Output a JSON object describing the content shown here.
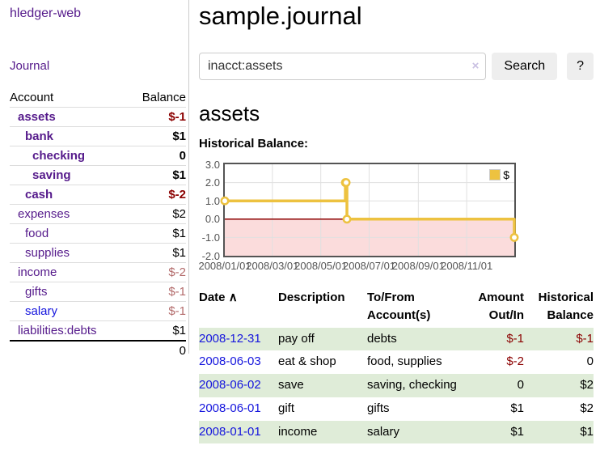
{
  "colors": {
    "link_purple": "#551a8b",
    "link_blue": "#1515dd",
    "negative_dark": "#8b0000",
    "negative_muted": "#b36b6b",
    "stripe_green": "#dfecd8",
    "button_bg": "#eeeeee",
    "input_border": "#cccccc",
    "clear_icon": "#c9c0e2",
    "divider": "#cccccc",
    "row_border": "#dddddd",
    "chart_line": "#edc240"
  },
  "sidebar": {
    "app_title": "hledger-web",
    "journal_link": "Journal",
    "accounts": {
      "account_header": "Account",
      "balance_header": "Balance",
      "rows": [
        {
          "account": "assets",
          "balance": "$-1",
          "indent": 0,
          "bold": true,
          "negative": true,
          "visited": true
        },
        {
          "account": "bank",
          "balance": "$1",
          "indent": 1,
          "bold": true,
          "negative": false,
          "visited": true
        },
        {
          "account": "checking",
          "balance": "0",
          "indent": 2,
          "bold": true,
          "negative": false,
          "visited": true
        },
        {
          "account": "saving",
          "balance": "$1",
          "indent": 2,
          "bold": true,
          "negative": false,
          "visited": true
        },
        {
          "account": "cash",
          "balance": "$-2",
          "indent": 1,
          "bold": true,
          "negative": true,
          "visited": true
        },
        {
          "account": "expenses",
          "balance": "$2",
          "indent": 0,
          "bold": false,
          "negative": false,
          "visited": true
        },
        {
          "account": "food",
          "balance": "$1",
          "indent": 1,
          "bold": false,
          "negative": false,
          "visited": true
        },
        {
          "account": "supplies",
          "balance": "$1",
          "indent": 1,
          "bold": false,
          "negative": false,
          "visited": true
        },
        {
          "account": "income",
          "balance": "$-2",
          "indent": 0,
          "bold": false,
          "negative": true,
          "visited": true
        },
        {
          "account": "gifts",
          "balance": "$-1",
          "indent": 1,
          "bold": false,
          "negative": true,
          "visited": true
        },
        {
          "account": "salary",
          "balance": "$-1",
          "indent": 1,
          "bold": false,
          "negative": true,
          "visited": false
        },
        {
          "account": "liabilities:debts",
          "balance": "$1",
          "indent": 0,
          "bold": false,
          "negative": false,
          "visited": true
        }
      ],
      "total": "0"
    }
  },
  "main": {
    "title": "sample.journal",
    "search": {
      "value": "inacct:assets",
      "clear_icon": "×",
      "search_button": "Search",
      "help_button": "?"
    },
    "account_heading": "assets",
    "section_label": "Historical Balance:"
  },
  "chart_data": {
    "type": "line",
    "step": true,
    "title": "Historical Balance:",
    "series": [
      {
        "name": "$",
        "color": "#edc240",
        "points": [
          [
            "2008-01-01",
            1
          ],
          [
            "2008-06-01",
            2
          ],
          [
            "2008-06-02",
            2
          ],
          [
            "2008-06-03",
            0
          ],
          [
            "2008-12-31",
            -1
          ]
        ]
      }
    ],
    "x_range": [
      "2008-01-01",
      "2008-12-31"
    ],
    "ylim": [
      -2,
      3
    ],
    "y_ticks": [
      "3.0",
      "2.0",
      "1.0",
      "0.0",
      "-1.0",
      "-2.0"
    ],
    "x_ticks": [
      "2008/01/01",
      "2008/03/01",
      "2008/05/01",
      "2008/07/01",
      "2008/09/01",
      "2008/11/01"
    ],
    "grid": true,
    "legend": "$",
    "legend_position": "top-right",
    "negative_region_color": "#fbdcdc",
    "zero_line_color": "#8b0000",
    "grid_color": "#e0e0e0",
    "border_color": "#545454"
  },
  "register": {
    "headers": {
      "date": "Date",
      "sort_icon": "∧",
      "description": "Description",
      "account": "To/From Account(s)",
      "amount": "Amount Out/In",
      "balance": "Historical Balance"
    },
    "rows": [
      {
        "date": "2008-12-31",
        "description": "pay off",
        "account": "debts",
        "amount": "$-1",
        "balance": "$-1"
      },
      {
        "date": "2008-06-03",
        "description": "eat & shop",
        "account": "food, supplies",
        "amount": "$-2",
        "balance": "0"
      },
      {
        "date": "2008-06-02",
        "description": "save",
        "account": "saving, checking",
        "amount": "0",
        "balance": "$2"
      },
      {
        "date": "2008-06-01",
        "description": "gift",
        "account": "gifts",
        "amount": "$1",
        "balance": "$2"
      },
      {
        "date": "2008-01-01",
        "description": "income",
        "account": "salary",
        "amount": "$1",
        "balance": "$1"
      }
    ]
  }
}
